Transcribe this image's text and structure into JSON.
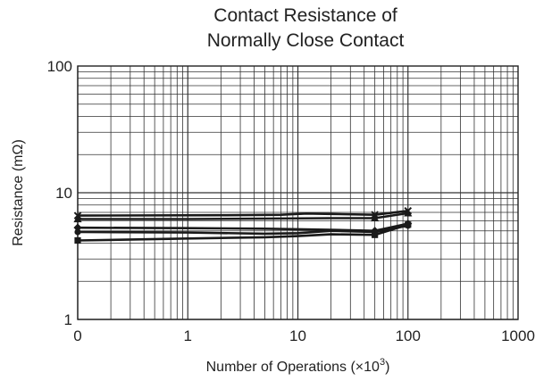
{
  "chart_data": {
    "type": "line",
    "title_lines": [
      "Contact Resistance of",
      "Normally Close Contact"
    ],
    "xlabel": "Number of Operations (×10",
    "xlabel_exp": "3",
    "xlabel_close": ")",
    "ylabel": "Resistance (mΩ)",
    "x_scale": "log (0 shown at left edge)",
    "y_scale": "log",
    "xlim": [
      0,
      1000
    ],
    "ylim": [
      1,
      100
    ],
    "x_ticks": [
      "0",
      "1",
      "10",
      "100",
      "1000"
    ],
    "y_ticks": [
      "1",
      "10",
      "100"
    ],
    "grid": true,
    "series": [
      {
        "marker": "x",
        "points": [
          [
            0,
            6.6
          ],
          [
            2,
            6.65
          ],
          [
            7,
            6.7
          ],
          [
            12,
            6.85
          ],
          [
            20,
            6.8
          ],
          [
            50,
            6.7
          ],
          [
            100,
            7.2
          ]
        ]
      },
      {
        "marker": "triangle",
        "points": [
          [
            0,
            6.2
          ],
          [
            1,
            6.2
          ],
          [
            5,
            6.25
          ],
          [
            20,
            6.3
          ],
          [
            50,
            6.3
          ],
          [
            100,
            6.9
          ]
        ]
      },
      {
        "marker": "diamond",
        "points": [
          [
            0,
            5.3
          ],
          [
            1,
            5.25
          ],
          [
            5,
            5.2
          ],
          [
            20,
            5.1
          ],
          [
            50,
            5.0
          ],
          [
            100,
            5.7
          ]
        ]
      },
      {
        "marker": "circle",
        "points": [
          [
            0,
            4.9
          ],
          [
            1,
            4.85
          ],
          [
            5,
            4.75
          ],
          [
            10,
            4.8
          ],
          [
            20,
            5.0
          ],
          [
            50,
            4.9
          ],
          [
            100,
            5.5
          ]
        ]
      },
      {
        "marker": "square",
        "points": [
          [
            0,
            4.2
          ],
          [
            1,
            4.35
          ],
          [
            5,
            4.45
          ],
          [
            10,
            4.55
          ],
          [
            20,
            4.7
          ],
          [
            50,
            4.65
          ],
          [
            100,
            5.6
          ]
        ]
      }
    ]
  }
}
